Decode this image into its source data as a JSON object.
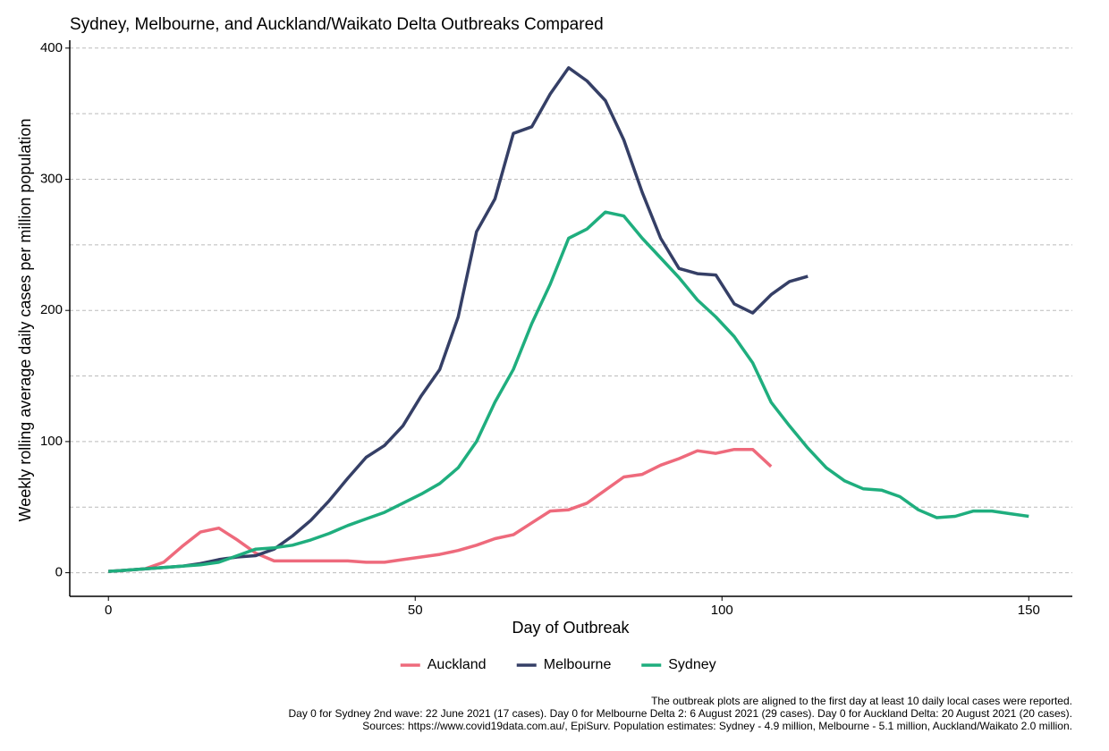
{
  "chart_data": {
    "type": "line",
    "title": "Sydney, Melbourne, and Auckland/Waikato Delta Outbreaks Compared",
    "x_label": "Day of Outbreak",
    "y_label": "Weekly rolling average daily cases per million population",
    "x": [
      0,
      3,
      6,
      9,
      12,
      15,
      18,
      21,
      24,
      27,
      30,
      33,
      36,
      39,
      42,
      45,
      48,
      51,
      54,
      57,
      60,
      63,
      66,
      69,
      72,
      75,
      78,
      81,
      84,
      87,
      90,
      93,
      96,
      99,
      102,
      105,
      108,
      111,
      114,
      117,
      120,
      123,
      126,
      129,
      132,
      135,
      138,
      141,
      144,
      147,
      150
    ],
    "series": [
      {
        "name": "Auckland",
        "color": "#ee6a7c",
        "values": [
          1,
          2,
          3,
          8,
          20,
          31,
          34,
          25,
          15,
          9,
          9,
          9,
          9,
          9,
          8,
          8,
          10,
          12,
          14,
          17,
          21,
          26,
          29,
          38,
          47,
          48,
          53,
          63,
          73,
          75,
          82,
          87,
          93,
          91,
          94,
          94,
          81,
          null,
          null,
          null,
          null,
          null,
          null,
          null,
          null,
          null,
          null,
          null,
          null,
          null,
          null
        ]
      },
      {
        "name": "Melbourne",
        "color": "#353f66",
        "values": [
          1,
          2,
          3,
          4,
          5,
          7,
          10,
          12,
          13,
          18,
          28,
          40,
          55,
          72,
          88,
          97,
          112,
          135,
          155,
          195,
          260,
          285,
          335,
          340,
          365,
          385,
          375,
          360,
          330,
          290,
          255,
          232,
          228,
          227,
          205,
          198,
          212,
          222,
          226,
          null,
          null,
          null,
          null,
          null,
          null,
          null,
          null,
          null,
          null,
          null,
          null
        ]
      },
      {
        "name": "Sydney",
        "color": "#1fae7e",
        "values": [
          1,
          2,
          3,
          4,
          5,
          6,
          8,
          13,
          18,
          19,
          21,
          25,
          30,
          36,
          41,
          46,
          53,
          60,
          68,
          80,
          100,
          130,
          155,
          190,
          220,
          255,
          262,
          275,
          272,
          255,
          240,
          225,
          208,
          195,
          180,
          160,
          130,
          112,
          95,
          80,
          70,
          64,
          63,
          58,
          48,
          42,
          43,
          47,
          47,
          45,
          43
        ]
      }
    ],
    "xlim": [
      -6.3,
      157.1
    ],
    "xticks": [
      0,
      50,
      100,
      150
    ],
    "ylim": [
      -18,
      406
    ],
    "yticks": [
      0,
      100,
      200,
      300,
      400
    ],
    "minor_ygrid": [
      50,
      150,
      250,
      350
    ],
    "grid": true,
    "legend": "bottom",
    "notes": [
      "The outbreak plots are aligned to the first day at least 10 daily local cases were reported.",
      "Day 0 for Sydney 2nd wave: 22 June 2021 (17 cases). Day 0 for Melbourne Delta 2: 6 August 2021 (29 cases). Day 0 for Auckland Delta: 20 August 2021 (20 cases).",
      "Sources: https://www.covid19data.com.au/, EpiSurv. Population estimates: Sydney - 4.9 million, Melbourne - 5.1 million, Auckland/Waikato 2.0 million."
    ]
  }
}
